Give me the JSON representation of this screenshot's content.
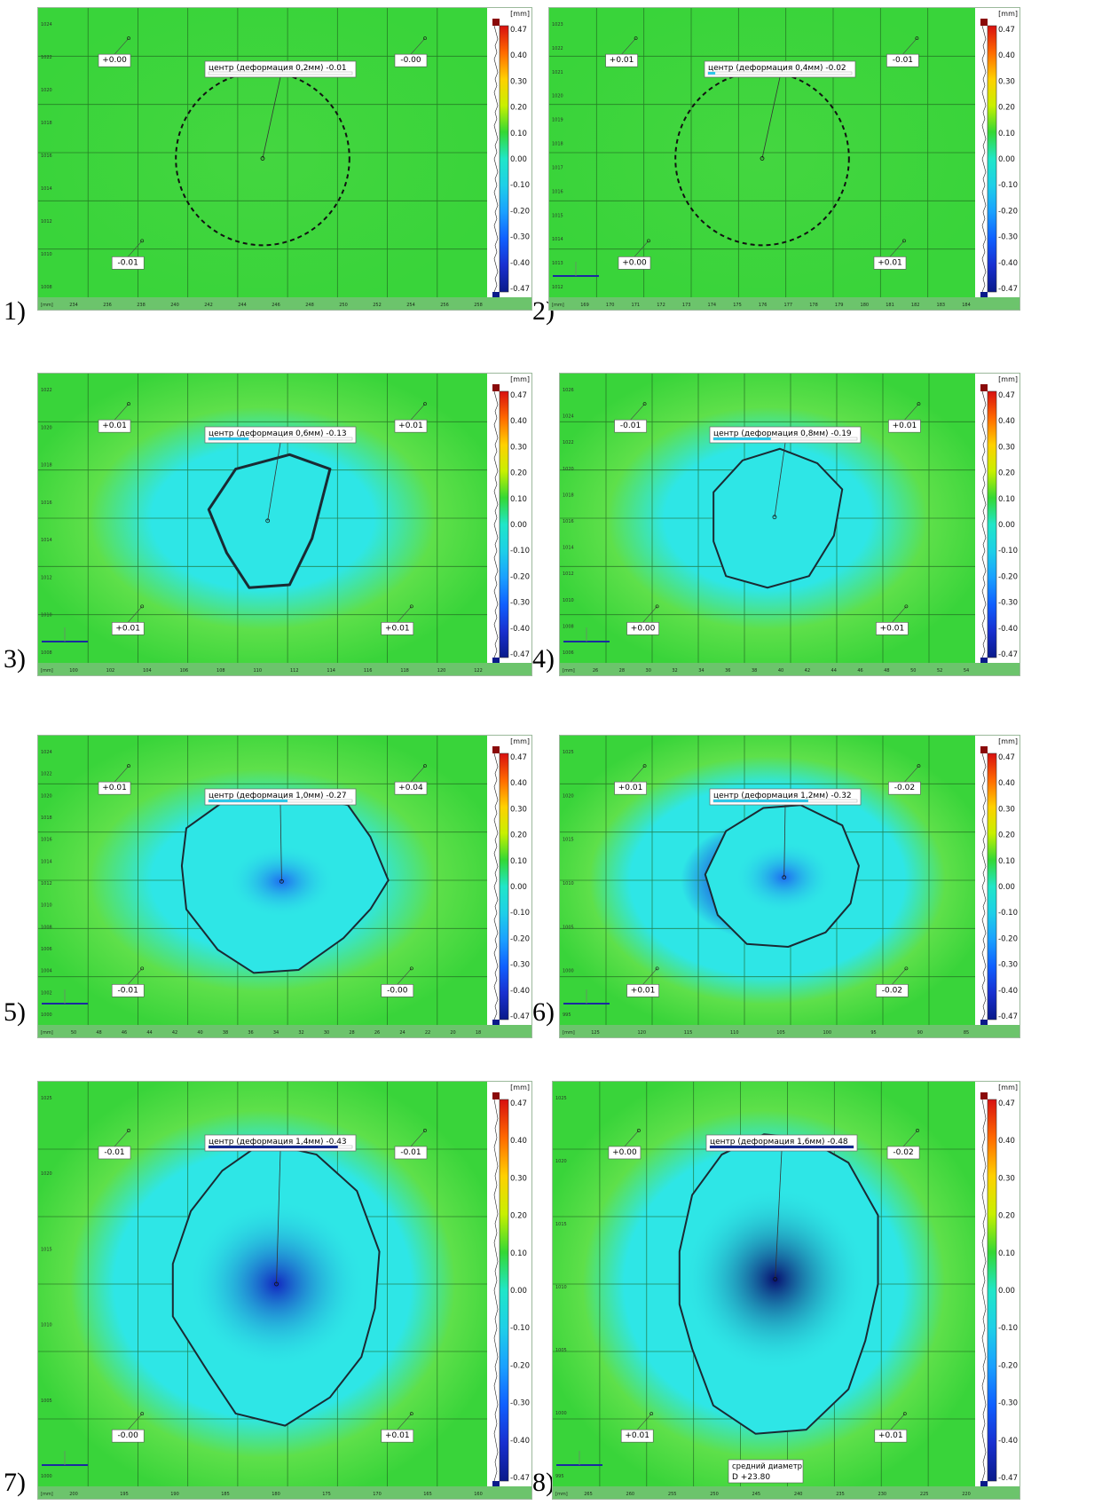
{
  "colors": {
    "green": "#39d43a",
    "green_light": "#5ee04a",
    "cyan": "#2ee6e6",
    "blue": "#1b4fe0",
    "dark_blue": "#0a1a8a",
    "grid": "#1c5a1c",
    "contour": "#1a2a33"
  },
  "colorbar": {
    "unit": "[mm]",
    "ticks": [
      "0.47",
      "0.40",
      "0.30",
      "0.20",
      "0.10",
      "0.00",
      "-0.10",
      "-0.20",
      "-0.30",
      "-0.40",
      "-0.47"
    ],
    "stops": [
      "#d81010",
      "#ff6a00",
      "#ffd000",
      "#c8f000",
      "#34d834",
      "#20e6c8",
      "#1ecfe8",
      "#1aa0ff",
      "#1060ff",
      "#1830d0",
      "#0a1a8a"
    ]
  },
  "panels": [
    {
      "index": "1)",
      "center_label": "центр (деформация 0,2мм) -0.01",
      "corners": [
        "+0.00",
        "-0.00",
        "-0.01"
      ],
      "y_ticks": [
        "1024",
        "1022",
        "1020",
        "1018",
        "1016",
        "1014",
        "1012",
        "1010",
        "1008"
      ],
      "x_ticks": [
        "234",
        "236",
        "238",
        "240",
        "242",
        "244",
        "246",
        "248",
        "250",
        "252",
        "254",
        "256",
        "258"
      ],
      "mm": "[mm]",
      "shape": "dashed",
      "bar_fill": 0.0
    },
    {
      "index": "2)",
      "center_label": "центр (деформация 0,4мм) -0.02",
      "corners": [
        "+0.01",
        "-0.01",
        "+0.00",
        "+0.01"
      ],
      "y_ticks": [
        "1023",
        "1022",
        "1021",
        "1020",
        "1019",
        "1018",
        "1017",
        "1016",
        "1015",
        "1014",
        "1013",
        "1012"
      ],
      "x_ticks": [
        "169",
        "170",
        "171",
        "172",
        "173",
        "174",
        "175",
        "176",
        "177",
        "178",
        "179",
        "180",
        "181",
        "182",
        "183",
        "184"
      ],
      "mm": "[mm]",
      "shape": "dashed",
      "bar_fill": 0.05
    },
    {
      "index": "3)",
      "center_label": "центр (деформация 0,6мм) -0.13",
      "corners": [
        "+0.01",
        "+0.01",
        "+0.01",
        "+0.01"
      ],
      "y_ticks": [
        "1022",
        "1020",
        "1018",
        "1016",
        "1014",
        "1012",
        "1010",
        "1008"
      ],
      "x_ticks": [
        "100",
        "102",
        "104",
        "106",
        "108",
        "110",
        "112",
        "114",
        "116",
        "118",
        "120",
        "122"
      ],
      "mm": "[mm]",
      "shape": "blob3",
      "bar_fill": 0.28
    },
    {
      "index": "4)",
      "center_label": "центр (деформация 0,8мм) -0.19",
      "corners": [
        "-0.01",
        "+0.01",
        "+0.00",
        "+0.01"
      ],
      "y_ticks": [
        "1026",
        "1024",
        "1022",
        "1020",
        "1018",
        "1016",
        "1014",
        "1012",
        "1010",
        "1008",
        "1006"
      ],
      "x_ticks": [
        "26",
        "28",
        "30",
        "32",
        "34",
        "36",
        "38",
        "40",
        "42",
        "44",
        "46",
        "48",
        "50",
        "52",
        "54"
      ],
      "mm": "[mm]",
      "shape": "blob4",
      "bar_fill": 0.4
    },
    {
      "index": "5)",
      "center_label": "центр (деформация 1,0мм) -0.27",
      "corners": [
        "+0.01",
        "+0.04",
        "-0.01",
        "-0.00"
      ],
      "y_ticks": [
        "1024",
        "1022",
        "1020",
        "1018",
        "1016",
        "1014",
        "1012",
        "1010",
        "1008",
        "1006",
        "1004",
        "1002",
        "1000"
      ],
      "x_ticks": [
        "50",
        "48",
        "46",
        "44",
        "42",
        "40",
        "38",
        "36",
        "34",
        "32",
        "30",
        "28",
        "26",
        "24",
        "22",
        "20",
        "18"
      ],
      "mm": "[mm]",
      "shape": "blob5",
      "bar_fill": 0.55
    },
    {
      "index": "6)",
      "center_label": "центр (деформация 1,2мм) -0.32",
      "corners": [
        "+0.01",
        "-0.02",
        "+0.01",
        "-0.02"
      ],
      "y_ticks": [
        "1025",
        "1020",
        "1015",
        "1010",
        "1005",
        "1000",
        "995"
      ],
      "x_ticks": [
        "125",
        "120",
        "115",
        "110",
        "105",
        "100",
        "95",
        "90",
        "85"
      ],
      "mm": "[mm]",
      "shape": "blob6",
      "bar_fill": 0.66
    },
    {
      "index": "7)",
      "center_label": "центр (деформация 1,4мм) -0.43",
      "corners": [
        "-0.01",
        "-0.01",
        "-0.00",
        "+0.01"
      ],
      "y_ticks": [
        "1025",
        "1020",
        "1015",
        "1010",
        "1005",
        "1000"
      ],
      "x_ticks": [
        "200",
        "195",
        "190",
        "185",
        "180",
        "175",
        "170",
        "165",
        "160"
      ],
      "mm": "[mm]",
      "shape": "blob7",
      "bar_fill": 0.9
    },
    {
      "index": "8)",
      "center_label": "центр (деформация 1,6мм) -0.48",
      "corners": [
        "+0.00",
        "-0.02",
        "+0.01",
        "+0.01"
      ],
      "y_ticks": [
        "1025",
        "1020",
        "1015",
        "1010",
        "1005",
        "1000",
        "995"
      ],
      "x_ticks": [
        "265",
        "260",
        "255",
        "250",
        "245",
        "240",
        "235",
        "230",
        "225",
        "220"
      ],
      "mm": "[mm]",
      "shape": "blob8",
      "bar_fill": 1.0,
      "diameter_title": "средний диаметр",
      "diameter_value": "D +23.80"
    }
  ]
}
